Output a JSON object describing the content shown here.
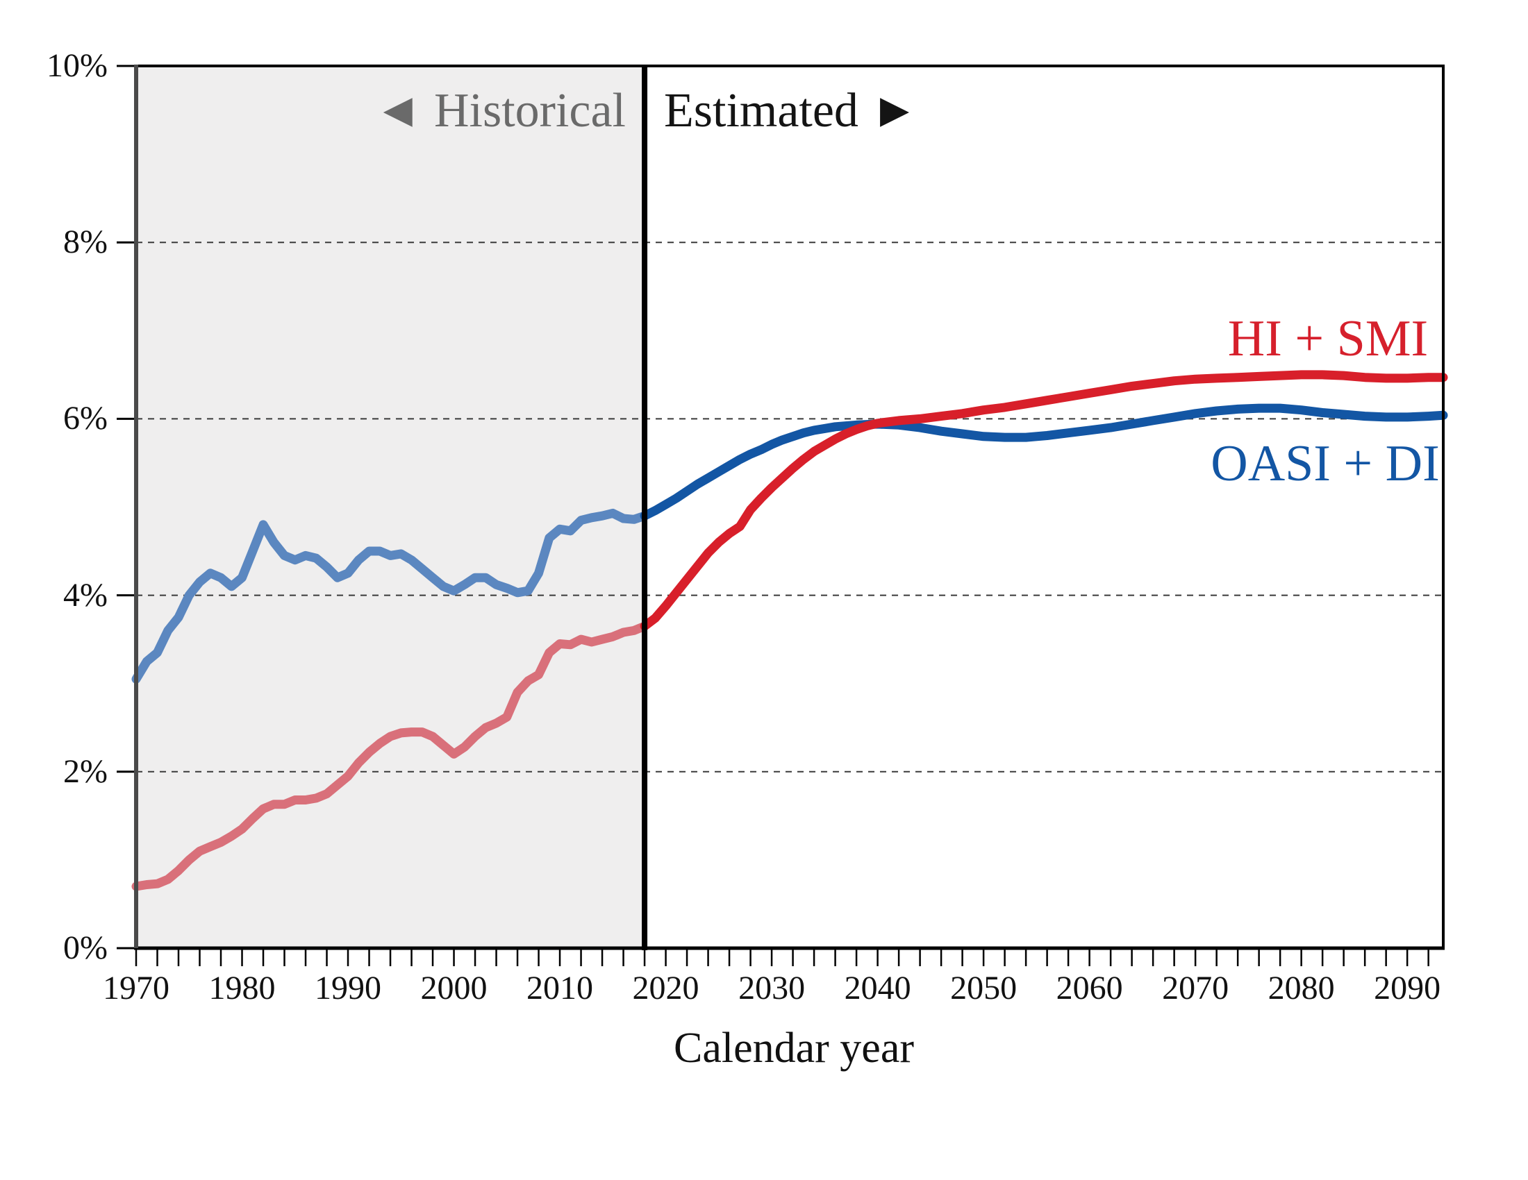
{
  "labels": {
    "historical_region": "◄ Historical",
    "estimated_region": "Estimated ►",
    "hi_smi": "HI + SMI",
    "oasi_di": "OASI + DI",
    "xlabel": "Calendar year"
  },
  "colors": {
    "background": "#ffffff",
    "historical_fill": "#efeeee",
    "gridline": "#3a3a3a",
    "axis_black": "#000000",
    "axis_left_gray": "#4a4a4a",
    "divider": "#000000",
    "oasdi_historical": "#5b87c0",
    "oasdi_estimated": "#1356a4",
    "medicare_historical": "#d9707a",
    "medicare_estimated": "#d81f2a",
    "historical_text": "#6a6a6a",
    "estimated_text": "#141414"
  },
  "chart_data": {
    "type": "line",
    "title": "",
    "xlabel": "Calendar year",
    "ylabel": "",
    "axes": {
      "x_min": 1970,
      "x_max": 2093.4,
      "y_min": 0,
      "y_max": 10,
      "x_minor_tick_step_years": 2,
      "x_tick_labels": [
        "1970",
        "1980",
        "1990",
        "2000",
        "2010",
        "2020",
        "2030",
        "2040",
        "2050",
        "2060",
        "2070",
        "2080",
        "2090"
      ],
      "x_tick_values": [
        1970,
        1980,
        1990,
        2000,
        2010,
        2020,
        2030,
        2040,
        2050,
        2060,
        2070,
        2080,
        2090
      ],
      "y_tick_labels": [
        "0%",
        "2%",
        "4%",
        "6%",
        "8%",
        "10%"
      ],
      "y_tick_values": [
        0,
        2,
        4,
        6,
        8,
        10
      ],
      "gridline_values": [
        2,
        4,
        6,
        8
      ],
      "grid": "dashed horizontal"
    },
    "divider_year": 2018,
    "regions": {
      "historical": {
        "from": 1970,
        "to": 2018,
        "label": "◄ Historical",
        "fill": "#efeeee"
      },
      "estimated": {
        "from": 2018,
        "to": 2093.4,
        "label": "Estimated ►",
        "fill": "#ffffff"
      }
    },
    "legend_position": "labels next to lines, right side",
    "series": [
      {
        "name": "OASI + DI",
        "color_historical": "#5b87c0",
        "color_estimated": "#1356a4",
        "points": [
          [
            1970,
            3.05
          ],
          [
            1971,
            3.25
          ],
          [
            1972,
            3.35
          ],
          [
            1973,
            3.6
          ],
          [
            1974,
            3.75
          ],
          [
            1975,
            4.0
          ],
          [
            1976,
            4.15
          ],
          [
            1977,
            4.25
          ],
          [
            1978,
            4.2
          ],
          [
            1979,
            4.1
          ],
          [
            1980,
            4.2
          ],
          [
            1981,
            4.5
          ],
          [
            1982,
            4.8
          ],
          [
            1983,
            4.6
          ],
          [
            1984,
            4.45
          ],
          [
            1985,
            4.4
          ],
          [
            1986,
            4.45
          ],
          [
            1987,
            4.42
          ],
          [
            1988,
            4.32
          ],
          [
            1989,
            4.2
          ],
          [
            1990,
            4.25
          ],
          [
            1991,
            4.4
          ],
          [
            1992,
            4.5
          ],
          [
            1993,
            4.5
          ],
          [
            1994,
            4.45
          ],
          [
            1995,
            4.47
          ],
          [
            1996,
            4.4
          ],
          [
            1997,
            4.3
          ],
          [
            1998,
            4.2
          ],
          [
            1999,
            4.1
          ],
          [
            2000,
            4.05
          ],
          [
            2001,
            4.12
          ],
          [
            2002,
            4.2
          ],
          [
            2003,
            4.2
          ],
          [
            2004,
            4.12
          ],
          [
            2005,
            4.08
          ],
          [
            2006,
            4.03
          ],
          [
            2007,
            4.05
          ],
          [
            2008,
            4.25
          ],
          [
            2009,
            4.65
          ],
          [
            2010,
            4.75
          ],
          [
            2011,
            4.73
          ],
          [
            2012,
            4.85
          ],
          [
            2013,
            4.88
          ],
          [
            2014,
            4.9
          ],
          [
            2015,
            4.93
          ],
          [
            2016,
            4.87
          ],
          [
            2017,
            4.86
          ],
          [
            2018,
            4.9
          ],
          [
            2019,
            4.96
          ],
          [
            2020,
            5.03
          ],
          [
            2021,
            5.1
          ],
          [
            2022,
            5.18
          ],
          [
            2023,
            5.26
          ],
          [
            2024,
            5.33
          ],
          [
            2025,
            5.4
          ],
          [
            2026,
            5.47
          ],
          [
            2027,
            5.54
          ],
          [
            2028,
            5.6
          ],
          [
            2029,
            5.65
          ],
          [
            2030,
            5.71
          ],
          [
            2031,
            5.76
          ],
          [
            2032,
            5.8
          ],
          [
            2033,
            5.84
          ],
          [
            2034,
            5.87
          ],
          [
            2035,
            5.89
          ],
          [
            2036,
            5.91
          ],
          [
            2037,
            5.92
          ],
          [
            2038,
            5.93
          ],
          [
            2040,
            5.94
          ],
          [
            2042,
            5.93
          ],
          [
            2044,
            5.9
          ],
          [
            2046,
            5.86
          ],
          [
            2048,
            5.83
          ],
          [
            2050,
            5.8
          ],
          [
            2052,
            5.79
          ],
          [
            2054,
            5.79
          ],
          [
            2056,
            5.81
          ],
          [
            2058,
            5.84
          ],
          [
            2060,
            5.87
          ],
          [
            2062,
            5.9
          ],
          [
            2064,
            5.94
          ],
          [
            2066,
            5.98
          ],
          [
            2068,
            6.02
          ],
          [
            2070,
            6.06
          ],
          [
            2072,
            6.09
          ],
          [
            2074,
            6.11
          ],
          [
            2076,
            6.12
          ],
          [
            2078,
            6.12
          ],
          [
            2080,
            6.1
          ],
          [
            2082,
            6.07
          ],
          [
            2084,
            6.05
          ],
          [
            2086,
            6.03
          ],
          [
            2088,
            6.02
          ],
          [
            2090,
            6.02
          ],
          [
            2092,
            6.03
          ],
          [
            2093.4,
            6.04
          ]
        ]
      },
      {
        "name": "HI + SMI",
        "color_historical": "#d9707a",
        "color_estimated": "#d81f2a",
        "points": [
          [
            1970,
            0.7
          ],
          [
            1971,
            0.72
          ],
          [
            1972,
            0.73
          ],
          [
            1973,
            0.78
          ],
          [
            1974,
            0.88
          ],
          [
            1975,
            1.0
          ],
          [
            1976,
            1.1
          ],
          [
            1977,
            1.15
          ],
          [
            1978,
            1.2
          ],
          [
            1979,
            1.27
          ],
          [
            1980,
            1.35
          ],
          [
            1981,
            1.47
          ],
          [
            1982,
            1.58
          ],
          [
            1983,
            1.63
          ],
          [
            1984,
            1.63
          ],
          [
            1985,
            1.68
          ],
          [
            1986,
            1.68
          ],
          [
            1987,
            1.7
          ],
          [
            1988,
            1.75
          ],
          [
            1989,
            1.85
          ],
          [
            1990,
            1.95
          ],
          [
            1991,
            2.1
          ],
          [
            1992,
            2.22
          ],
          [
            1993,
            2.32
          ],
          [
            1994,
            2.4
          ],
          [
            1995,
            2.44
          ],
          [
            1996,
            2.45
          ],
          [
            1997,
            2.45
          ],
          [
            1998,
            2.4
          ],
          [
            1999,
            2.3
          ],
          [
            2000,
            2.2
          ],
          [
            2001,
            2.28
          ],
          [
            2002,
            2.4
          ],
          [
            2003,
            2.5
          ],
          [
            2004,
            2.55
          ],
          [
            2005,
            2.62
          ],
          [
            2006,
            2.9
          ],
          [
            2007,
            3.03
          ],
          [
            2008,
            3.1
          ],
          [
            2009,
            3.35
          ],
          [
            2010,
            3.45
          ],
          [
            2011,
            3.44
          ],
          [
            2012,
            3.5
          ],
          [
            2013,
            3.47
          ],
          [
            2014,
            3.5
          ],
          [
            2015,
            3.53
          ],
          [
            2016,
            3.58
          ],
          [
            2017,
            3.6
          ],
          [
            2018,
            3.65
          ],
          [
            2019,
            3.74
          ],
          [
            2020,
            3.88
          ],
          [
            2021,
            4.03
          ],
          [
            2022,
            4.18
          ],
          [
            2023,
            4.33
          ],
          [
            2024,
            4.48
          ],
          [
            2025,
            4.6
          ],
          [
            2026,
            4.7
          ],
          [
            2027,
            4.78
          ],
          [
            2028,
            4.97
          ],
          [
            2029,
            5.1
          ],
          [
            2030,
            5.22
          ],
          [
            2031,
            5.33
          ],
          [
            2032,
            5.44
          ],
          [
            2033,
            5.54
          ],
          [
            2034,
            5.63
          ],
          [
            2035,
            5.7
          ],
          [
            2036,
            5.77
          ],
          [
            2037,
            5.83
          ],
          [
            2038,
            5.88
          ],
          [
            2039,
            5.92
          ],
          [
            2040,
            5.95
          ],
          [
            2042,
            5.98
          ],
          [
            2044,
            6.0
          ],
          [
            2046,
            6.03
          ],
          [
            2048,
            6.06
          ],
          [
            2050,
            6.1
          ],
          [
            2052,
            6.13
          ],
          [
            2054,
            6.17
          ],
          [
            2056,
            6.21
          ],
          [
            2058,
            6.25
          ],
          [
            2060,
            6.29
          ],
          [
            2062,
            6.33
          ],
          [
            2064,
            6.37
          ],
          [
            2066,
            6.4
          ],
          [
            2068,
            6.43
          ],
          [
            2070,
            6.45
          ],
          [
            2072,
            6.46
          ],
          [
            2074,
            6.47
          ],
          [
            2076,
            6.48
          ],
          [
            2078,
            6.49
          ],
          [
            2080,
            6.5
          ],
          [
            2082,
            6.5
          ],
          [
            2084,
            6.49
          ],
          [
            2086,
            6.47
          ],
          [
            2088,
            6.46
          ],
          [
            2090,
            6.46
          ],
          [
            2092,
            6.47
          ],
          [
            2093.4,
            6.47
          ]
        ]
      }
    ]
  }
}
